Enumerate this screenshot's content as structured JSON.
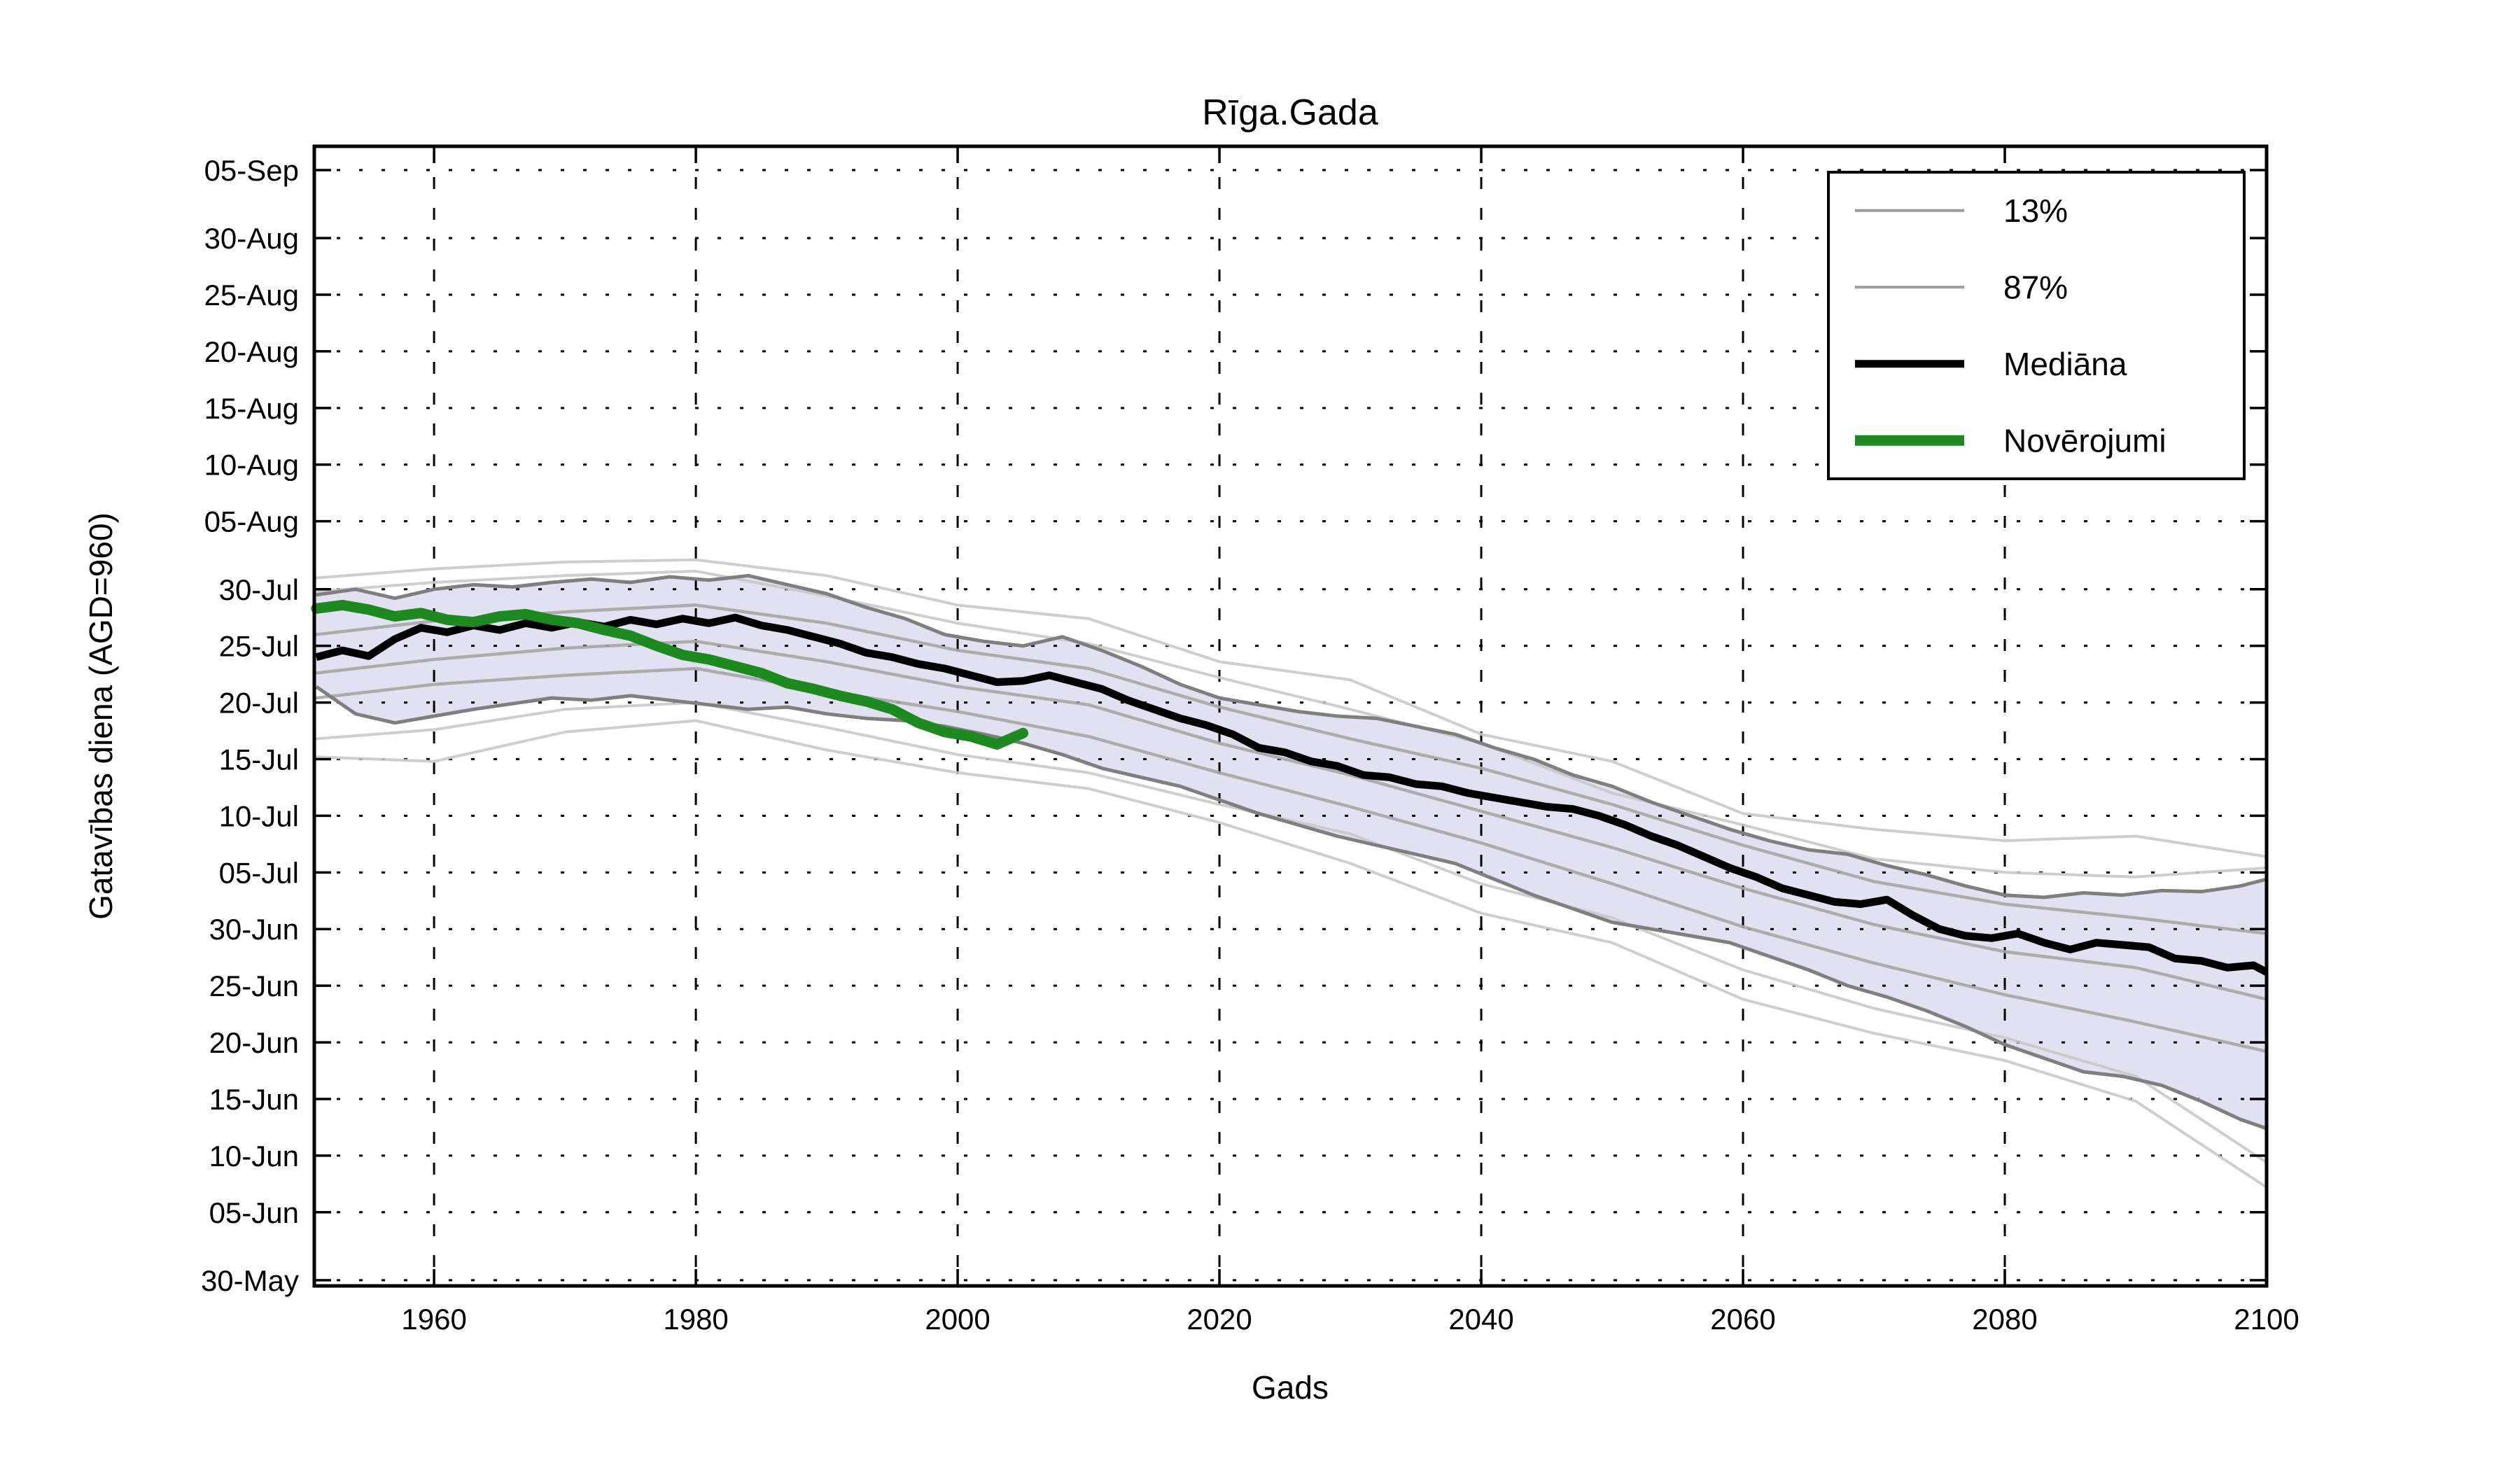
{
  "title": "Rīga.Gada",
  "x_axis": {
    "label": "Gads",
    "ticks": [
      1960,
      1980,
      2000,
      2020,
      2040,
      2060,
      2080,
      2100
    ],
    "range": [
      1950.85,
      2100
    ]
  },
  "y_axis": {
    "label": "Gatavības diena (AGD=960)",
    "range_doy": [
      149.5,
      250.1
    ],
    "ticks": [
      {
        "label": "05-Sep",
        "doy": 248
      },
      {
        "label": "30-Aug",
        "doy": 242
      },
      {
        "label": "25-Aug",
        "doy": 237
      },
      {
        "label": "20-Aug",
        "doy": 232
      },
      {
        "label": "15-Aug",
        "doy": 227
      },
      {
        "label": "10-Aug",
        "doy": 222
      },
      {
        "label": "05-Aug",
        "doy": 217
      },
      {
        "label": "30-Jul",
        "doy": 211
      },
      {
        "label": "25-Jul",
        "doy": 206
      },
      {
        "label": "20-Jul",
        "doy": 201
      },
      {
        "label": "15-Jul",
        "doy": 196
      },
      {
        "label": "10-Jul",
        "doy": 191
      },
      {
        "label": "05-Jul",
        "doy": 186
      },
      {
        "label": "30-Jun",
        "doy": 181
      },
      {
        "label": "25-Jun",
        "doy": 176
      },
      {
        "label": "20-Jun",
        "doy": 171
      },
      {
        "label": "15-Jun",
        "doy": 166
      },
      {
        "label": "10-Jun",
        "doy": 161
      },
      {
        "label": "05-Jun",
        "doy": 156
      },
      {
        "label": "30-May",
        "doy": 150
      }
    ]
  },
  "legend": {
    "items": [
      {
        "label": "13%",
        "color": "#9a9a9a",
        "line_width": 4
      },
      {
        "label": "87%",
        "color": "#9a9a9a",
        "line_width": 4
      },
      {
        "label": "Mediāna",
        "color": "#000000",
        "line_width": 11
      },
      {
        "label": "Novērojumi",
        "color": "#1d8a20",
        "line_width": 15
      }
    ]
  },
  "colors": {
    "background": "#ffffff",
    "frame": "#000000",
    "grid": "#000000",
    "text": "#000000",
    "band_fill": "#dcdcf0",
    "band_edge": "#7f7f7f",
    "ensemble_light": "#c9c9c9",
    "ensemble_mid": "#a6a6a6",
    "median": "#000000",
    "observations": "#1d8a20",
    "legend_border": "#000000"
  },
  "chart_data": {
    "type": "line",
    "title": "Rīga.Gada",
    "xlabel": "Gads",
    "ylabel": "Gatavības diena (AGD=960)",
    "grid": true,
    "legend_position": "upper right",
    "xlim": [
      1951,
      2100
    ],
    "y_unit": "day-of-year shown as dd-Mon dates",
    "ylim_dates": [
      "30-May (approx)",
      "05-Sep (approx)"
    ],
    "band": {
      "name": "13–87% percentile band",
      "fill": "#dcdcf0",
      "edge_color": "#7f7f7f",
      "edge_width": 5,
      "x": [
        1951,
        1954,
        1957,
        1960,
        1963,
        1966,
        1969,
        1972,
        1975,
        1978,
        1981,
        1984,
        1987,
        1990,
        1993,
        1996,
        1999,
        2002,
        2005,
        2008,
        2011,
        2014,
        2017,
        2020,
        2023,
        2026,
        2029,
        2032,
        2035,
        2038,
        2041,
        2044,
        2047,
        2050,
        2053,
        2056,
        2059,
        2062,
        2065,
        2068,
        2071,
        2074,
        2077,
        2080,
        2083,
        2086,
        2089,
        2092,
        2095,
        2098,
        2100
      ],
      "upper_doy": [
        210.5,
        211.0,
        210.2,
        211.0,
        211.4,
        211.2,
        211.6,
        211.9,
        211.6,
        212.1,
        211.8,
        212.2,
        211.4,
        210.6,
        209.4,
        208.4,
        207.0,
        206.4,
        206.0,
        206.8,
        205.6,
        204.2,
        202.6,
        201.4,
        200.8,
        200.2,
        199.8,
        199.6,
        198.9,
        198.2,
        197.0,
        196.0,
        194.6,
        193.6,
        192.2,
        191.0,
        189.8,
        188.8,
        188.0,
        187.6,
        186.6,
        185.8,
        184.8,
        184.0,
        183.8,
        184.2,
        184.0,
        184.4,
        184.3,
        184.8,
        185.4
      ],
      "lower_doy": [
        202.4,
        200.0,
        199.2,
        199.8,
        200.4,
        200.9,
        201.4,
        201.2,
        201.6,
        201.2,
        200.8,
        200.4,
        200.6,
        200.0,
        199.6,
        199.4,
        198.9,
        198.2,
        197.4,
        196.4,
        195.2,
        194.4,
        193.6,
        192.4,
        191.2,
        190.2,
        189.2,
        188.4,
        187.6,
        186.8,
        185.4,
        184.0,
        182.8,
        181.6,
        181.0,
        180.4,
        179.8,
        178.6,
        177.4,
        176.0,
        175.0,
        173.8,
        172.4,
        170.8,
        169.6,
        168.4,
        168.0,
        167.2,
        165.8,
        164.2,
        163.4
      ]
    },
    "series": [
      {
        "name": "Mediāna",
        "role": "median",
        "color": "#000000",
        "width": 11,
        "x": [
          1951,
          1953,
          1955,
          1957,
          1959,
          1961,
          1963,
          1965,
          1967,
          1969,
          1971,
          1973,
          1975,
          1977,
          1979,
          1981,
          1983,
          1985,
          1987,
          1989,
          1991,
          1993,
          1995,
          1997,
          1999,
          2001,
          2003,
          2005,
          2007,
          2009,
          2011,
          2013,
          2015,
          2017,
          2019,
          2021,
          2023,
          2025,
          2027,
          2029,
          2031,
          2033,
          2035,
          2037,
          2039,
          2041,
          2043,
          2045,
          2047,
          2049,
          2051,
          2053,
          2055,
          2057,
          2059,
          2061,
          2063,
          2065,
          2067,
          2069,
          2071,
          2073,
          2075,
          2077,
          2079,
          2081,
          2083,
          2085,
          2087,
          2089,
          2091,
          2093,
          2095,
          2097,
          2099,
          2100
        ],
        "doy": [
          205.0,
          205.6,
          205.1,
          206.6,
          207.6,
          207.2,
          207.8,
          207.4,
          208.0,
          207.6,
          208.1,
          207.7,
          208.3,
          207.9,
          208.4,
          208.0,
          208.5,
          207.8,
          207.4,
          206.8,
          206.2,
          205.4,
          205.0,
          204.4,
          204.0,
          203.4,
          202.8,
          202.9,
          203.4,
          202.8,
          202.2,
          201.2,
          200.4,
          199.6,
          199.0,
          198.2,
          197.0,
          196.6,
          195.8,
          195.4,
          194.6,
          194.4,
          193.8,
          193.6,
          193.0,
          192.6,
          192.2,
          191.8,
          191.6,
          191.0,
          190.2,
          189.2,
          188.4,
          187.4,
          186.4,
          185.6,
          184.6,
          184.0,
          183.4,
          183.2,
          183.6,
          182.2,
          181.0,
          180.4,
          180.2,
          180.6,
          179.8,
          179.2,
          179.8,
          179.6,
          179.4,
          178.4,
          178.2,
          177.6,
          177.8,
          177.2
        ]
      },
      {
        "name": "Novērojumi",
        "role": "observations",
        "color": "#1d8a20",
        "width": 15,
        "x": [
          1951,
          1953,
          1955,
          1957,
          1959,
          1961,
          1963,
          1965,
          1967,
          1969,
          1971,
          1973,
          1975,
          1977,
          1979,
          1981,
          1983,
          1985,
          1987,
          1989,
          1991,
          1993,
          1995,
          1997,
          1999,
          2001,
          2003,
          2005
        ],
        "doy": [
          209.3,
          209.6,
          209.2,
          208.6,
          208.9,
          208.3,
          208.1,
          208.6,
          208.8,
          208.3,
          208.0,
          207.4,
          206.9,
          206.0,
          205.2,
          204.8,
          204.2,
          203.6,
          202.7,
          202.2,
          201.6,
          201.1,
          200.4,
          199.2,
          198.4,
          198.0,
          197.3,
          198.3
        ]
      },
      {
        "name": "ensemble-upper-1",
        "role": "percentile-member-light",
        "color": "#c9c9c9",
        "width": 4,
        "x": [
          1951,
          1960,
          1970,
          1980,
          1990,
          2000,
          2010,
          2020,
          2030,
          2040,
          2050,
          2060,
          2070,
          2080,
          2090,
          2100
        ],
        "doy": [
          212.0,
          212.8,
          213.4,
          213.6,
          212.2,
          209.6,
          208.4,
          204.6,
          203.0,
          198.2,
          195.8,
          191.2,
          189.8,
          188.8,
          189.2,
          187.4
        ]
      },
      {
        "name": "ensemble-upper-2",
        "role": "percentile-member-light",
        "color": "#c9c9c9",
        "width": 4,
        "x": [
          1951,
          1960,
          1970,
          1980,
          1990,
          2000,
          2010,
          2020,
          2030,
          2040,
          2050,
          2060,
          2070,
          2080,
          2090,
          2100
        ],
        "doy": [
          210.8,
          211.6,
          212.2,
          212.6,
          210.4,
          208.0,
          206.2,
          203.2,
          200.4,
          197.4,
          193.0,
          190.2,
          187.2,
          186.0,
          185.6,
          186.4
        ]
      },
      {
        "name": "ensemble-mid-1",
        "role": "percentile-member-mid",
        "color": "#a6a6a6",
        "width": 4.5,
        "x": [
          1951,
          1960,
          1970,
          1980,
          1990,
          2000,
          2010,
          2020,
          2030,
          2040,
          2050,
          2060,
          2070,
          2080,
          2090,
          2100
        ],
        "doy": [
          207.0,
          208.2,
          209.0,
          209.6,
          208.0,
          205.6,
          204.0,
          200.6,
          197.8,
          195.2,
          192.0,
          188.4,
          185.2,
          183.2,
          182.0,
          180.6
        ]
      },
      {
        "name": "ensemble-mid-2",
        "role": "percentile-member-mid",
        "color": "#a6a6a6",
        "width": 4.5,
        "x": [
          1951,
          1960,
          1970,
          1980,
          1990,
          2000,
          2010,
          2020,
          2030,
          2040,
          2050,
          2060,
          2070,
          2080,
          2090,
          2100
        ],
        "doy": [
          203.6,
          204.8,
          205.8,
          206.4,
          204.6,
          202.4,
          200.8,
          197.4,
          194.6,
          191.4,
          188.2,
          184.6,
          181.4,
          179.0,
          177.6,
          174.8
        ]
      },
      {
        "name": "ensemble-mid-3",
        "role": "percentile-member-mid",
        "color": "#a6a6a6",
        "width": 4.5,
        "x": [
          1951,
          1960,
          1970,
          1980,
          1990,
          2000,
          2010,
          2020,
          2030,
          2040,
          2050,
          2060,
          2070,
          2080,
          2090,
          2100
        ],
        "doy": [
          201.4,
          202.6,
          203.4,
          204.0,
          202.0,
          200.2,
          198.0,
          194.8,
          191.8,
          188.6,
          185.0,
          181.2,
          178.0,
          175.2,
          172.8,
          170.2
        ]
      },
      {
        "name": "ensemble-lower-1",
        "role": "percentile-member-light",
        "color": "#c9c9c9",
        "width": 4,
        "x": [
          1951,
          1960,
          1970,
          1980,
          1990,
          2000,
          2010,
          2020,
          2030,
          2040,
          2050,
          2060,
          2070,
          2080,
          2090,
          2100
        ],
        "doy": [
          197.8,
          198.6,
          200.4,
          201.0,
          198.8,
          196.4,
          194.8,
          192.0,
          189.4,
          185.0,
          182.0,
          177.4,
          174.0,
          171.4,
          168.0,
          160.4
        ]
      },
      {
        "name": "ensemble-lower-2",
        "role": "percentile-member-light",
        "color": "#c9c9c9",
        "width": 4,
        "x": [
          1951,
          1960,
          1970,
          1980,
          1990,
          2000,
          2010,
          2020,
          2030,
          2040,
          2050,
          2060,
          2070,
          2080,
          2090,
          2100
        ],
        "doy": [
          196.2,
          195.8,
          198.4,
          199.4,
          196.8,
          194.8,
          193.4,
          190.4,
          186.8,
          182.4,
          179.8,
          174.8,
          171.8,
          169.4,
          165.8,
          158.2
        ]
      }
    ]
  }
}
